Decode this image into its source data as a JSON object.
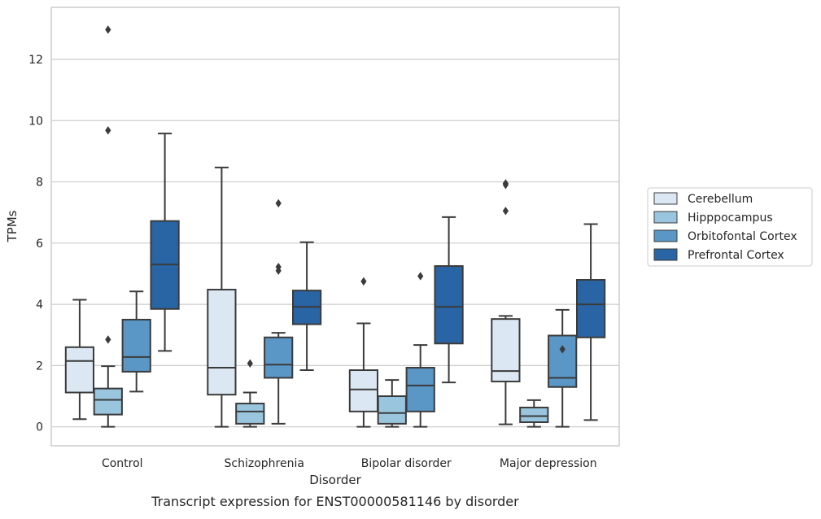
{
  "chart_data": {
    "type": "boxplot",
    "caption": "Transcript expression for ENST00000581146 by disorder",
    "xlabel": "Disorder",
    "ylabel": "TPMs",
    "ylim": [
      -0.62,
      13.7
    ],
    "yticks": [
      0,
      2,
      4,
      6,
      8,
      10,
      12
    ],
    "grid": true,
    "legend_position": "right",
    "categories": [
      "Control",
      "Schizophrenia",
      "Bipolar disorder",
      "Major depression"
    ],
    "series": [
      {
        "name": "Cerebellum",
        "color": "#dbe7f3",
        "boxes": [
          {
            "whislo": 0.25,
            "q1": 1.12,
            "med": 2.15,
            "q3": 2.6,
            "whishi": 4.15,
            "fliers": []
          },
          {
            "whislo": 0.0,
            "q1": 1.05,
            "med": 1.93,
            "q3": 4.48,
            "whishi": 8.47,
            "fliers": []
          },
          {
            "whislo": 0.0,
            "q1": 0.5,
            "med": 1.22,
            "q3": 1.85,
            "whishi": 3.38,
            "fliers": [
              4.75
            ]
          },
          {
            "whislo": 0.08,
            "q1": 1.48,
            "med": 1.82,
            "q3": 3.52,
            "whishi": 3.62,
            "fliers": [
              7.9,
              7.95,
              7.05
            ]
          }
        ]
      },
      {
        "name": "Hipppocampus",
        "color": "#9ac5de",
        "boxes": [
          {
            "whislo": 0.0,
            "q1": 0.4,
            "med": 0.88,
            "q3": 1.25,
            "whishi": 1.98,
            "fliers": [
              12.97,
              9.68,
              2.85
            ]
          },
          {
            "whislo": 0.0,
            "q1": 0.1,
            "med": 0.5,
            "q3": 0.76,
            "whishi": 1.12,
            "fliers": [
              2.07
            ]
          },
          {
            "whislo": 0.0,
            "q1": 0.1,
            "med": 0.45,
            "q3": 1.0,
            "whishi": 1.53,
            "fliers": []
          },
          {
            "whislo": 0.0,
            "q1": 0.15,
            "med": 0.35,
            "q3": 0.63,
            "whishi": 0.87,
            "fliers": []
          }
        ]
      },
      {
        "name": "Orbitofontal Cortex",
        "color": "#5a97c6",
        "boxes": [
          {
            "whislo": 1.15,
            "q1": 1.8,
            "med": 2.28,
            "q3": 3.5,
            "whishi": 4.42,
            "fliers": []
          },
          {
            "whislo": 0.1,
            "q1": 1.6,
            "med": 2.03,
            "q3": 2.92,
            "whishi": 3.07,
            "fliers": [
              7.3,
              5.22,
              5.1
            ]
          },
          {
            "whislo": 0.0,
            "q1": 0.5,
            "med": 1.35,
            "q3": 1.93,
            "whishi": 2.67,
            "fliers": [
              4.92
            ]
          },
          {
            "whislo": 0.0,
            "q1": 1.3,
            "med": 1.6,
            "q3": 2.98,
            "whishi": 3.82,
            "fliers": [
              2.53
            ]
          }
        ]
      },
      {
        "name": "Prefrontal Cortex",
        "color": "#2964a4",
        "boxes": [
          {
            "whislo": 2.48,
            "q1": 3.85,
            "med": 5.3,
            "q3": 6.72,
            "whishi": 9.58,
            "fliers": []
          },
          {
            "whislo": 1.85,
            "q1": 3.35,
            "med": 3.92,
            "q3": 4.45,
            "whishi": 6.03,
            "fliers": []
          },
          {
            "whislo": 1.45,
            "q1": 2.72,
            "med": 3.92,
            "q3": 5.25,
            "whishi": 6.85,
            "fliers": []
          },
          {
            "whislo": 0.22,
            "q1": 2.92,
            "med": 4.0,
            "q3": 4.8,
            "whishi": 6.62,
            "fliers": []
          }
        ]
      }
    ]
  }
}
